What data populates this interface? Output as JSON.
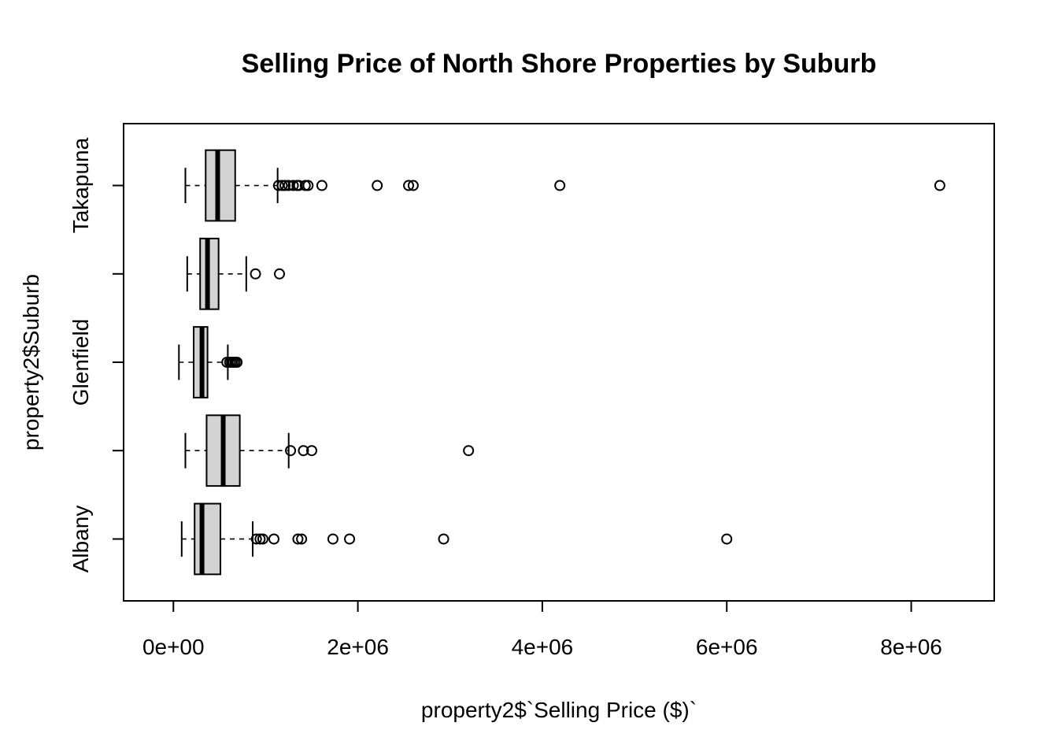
{
  "chart_data": {
    "type": "boxplot",
    "orientation": "horizontal",
    "title": "Selling Price of North Shore Properties by Suburb",
    "xlabel": "property2$`Selling Price ($)`",
    "ylabel": "property2$Suburb",
    "xlim": [
      -540000,
      8900000
    ],
    "x_ticks": [
      0,
      2000000,
      4000000,
      6000000,
      8000000
    ],
    "x_tick_labels": [
      "0e+00",
      "2e+06",
      "4e+06",
      "6e+06",
      "8e+06"
    ],
    "y_tick_labels": [
      "Albany",
      "",
      "Glenfield",
      "",
      "Takapuna"
    ],
    "box_fill": "#d3d3d3",
    "groups": [
      {
        "label": "Albany",
        "whisker_low": 90000,
        "q1": 230000,
        "median": 310000,
        "q3": 510000,
        "whisker_high": 860000,
        "outliers": [
          900000,
          940000,
          970000,
          1090000,
          1350000,
          1390000,
          1730000,
          1910000,
          2930000,
          6000000
        ]
      },
      {
        "label": "",
        "whisker_low": 130000,
        "q1": 360000,
        "median": 540000,
        "q3": 720000,
        "whisker_high": 1250000,
        "outliers": [
          1270000,
          1410000,
          1500000,
          3200000
        ]
      },
      {
        "label": "Glenfield",
        "whisker_low": 60000,
        "q1": 220000,
        "median": 310000,
        "q3": 370000,
        "whisker_high": 590000,
        "outliers": [
          580000,
          610000,
          630000,
          650000,
          670000,
          690000
        ]
      },
      {
        "label": "",
        "whisker_low": 150000,
        "q1": 290000,
        "median": 370000,
        "q3": 490000,
        "whisker_high": 790000,
        "outliers": [
          890000,
          1150000
        ]
      },
      {
        "label": "Takapuna",
        "whisker_low": 130000,
        "q1": 350000,
        "median": 480000,
        "q3": 670000,
        "whisker_high": 1130000,
        "outliers": [
          1140000,
          1180000,
          1210000,
          1250000,
          1300000,
          1340000,
          1360000,
          1430000,
          1460000,
          1610000,
          2210000,
          2550000,
          2600000,
          4190000,
          8310000
        ]
      }
    ]
  }
}
